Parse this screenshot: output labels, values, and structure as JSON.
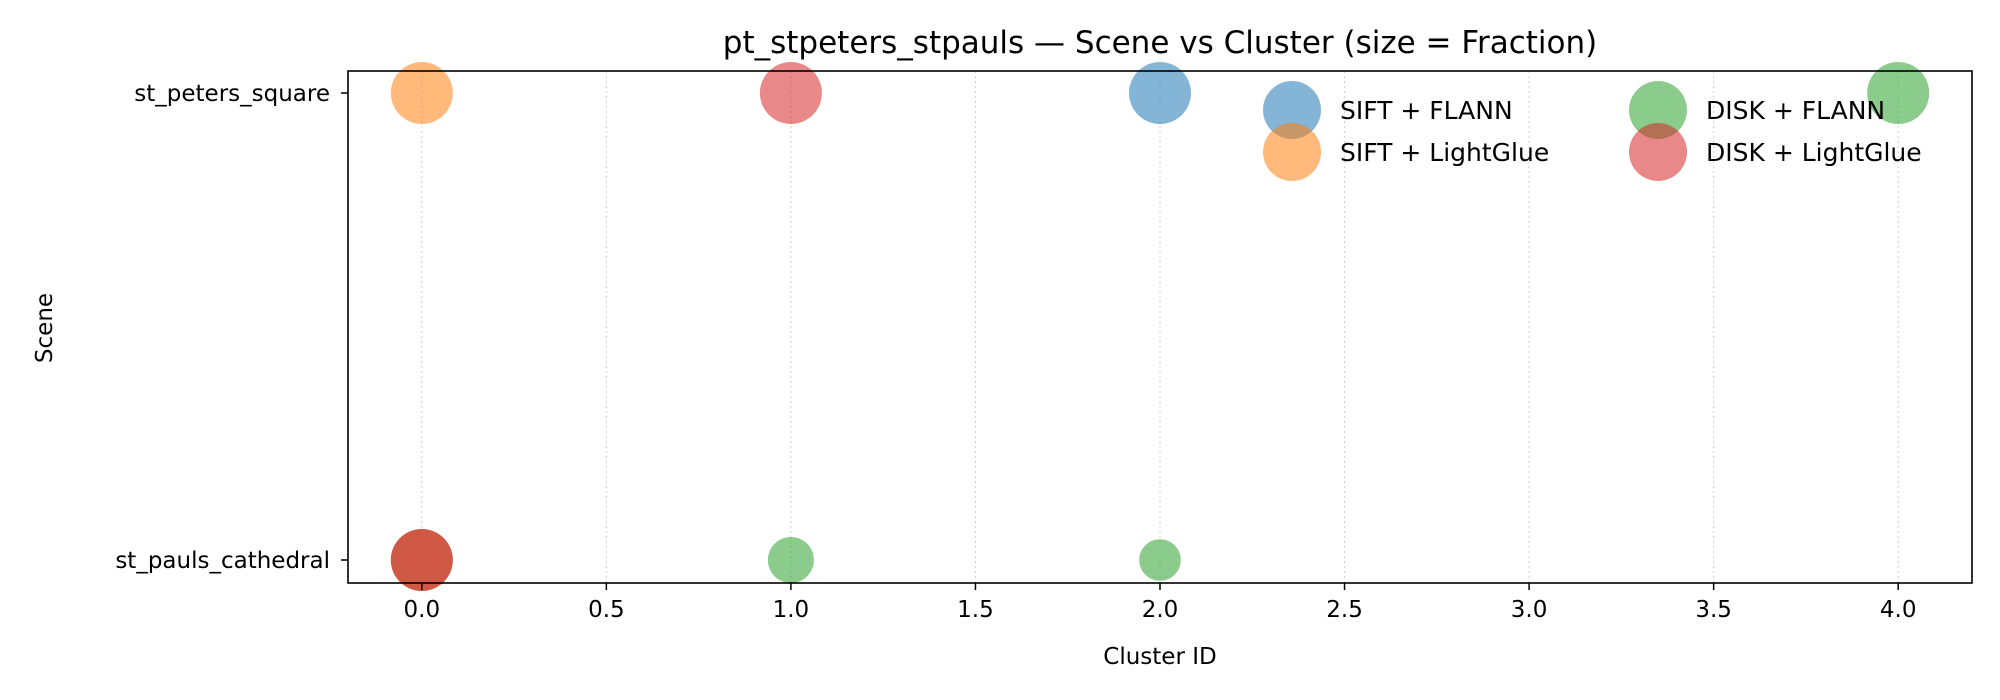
{
  "chart_data": {
    "type": "scatter",
    "title": "pt_stpeters_stpauls — Scene vs Cluster (size = Fraction)",
    "xlabel": "Cluster ID",
    "ylabel": "Scene",
    "xlim": [
      -0.2,
      4.2
    ],
    "xticks": [
      "0.0",
      "0.5",
      "1.0",
      "1.5",
      "2.0",
      "2.5",
      "3.0",
      "3.5",
      "4.0"
    ],
    "y_categories": [
      "st_peters_square",
      "st_pauls_cathedral"
    ],
    "grid": "x-dotted",
    "legend_placement": "top-right",
    "series": [
      {
        "name": "SIFT + FLANN",
        "color": "#1f77b4",
        "points": [
          {
            "x": 2,
            "y": "st_peters_square",
            "fraction": 1.0
          },
          {
            "x": 0,
            "y": "st_pauls_cathedral",
            "fraction": 1.0
          }
        ]
      },
      {
        "name": "SIFT + LightGlue",
        "color": "#ff7f0e",
        "points": [
          {
            "x": 0,
            "y": "st_peters_square",
            "fraction": 1.0
          },
          {
            "x": 0,
            "y": "st_pauls_cathedral",
            "fraction": 1.0
          }
        ]
      },
      {
        "name": "DISK + FLANN",
        "color": "#2ca02c",
        "points": [
          {
            "x": 4,
            "y": "st_peters_square",
            "fraction": 1.0
          },
          {
            "x": 1,
            "y": "st_pauls_cathedral",
            "fraction": 0.55
          },
          {
            "x": 2,
            "y": "st_pauls_cathedral",
            "fraction": 0.45
          }
        ]
      },
      {
        "name": "DISK + LightGlue",
        "color": "#d62728",
        "points": [
          {
            "x": 1,
            "y": "st_peters_square",
            "fraction": 1.0
          },
          {
            "x": 0,
            "y": "st_pauls_cathedral",
            "fraction": 1.0
          }
        ]
      }
    ]
  }
}
